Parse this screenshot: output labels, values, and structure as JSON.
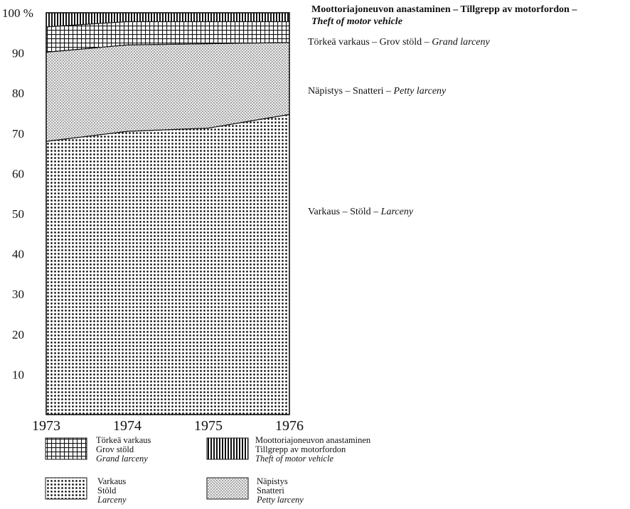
{
  "chart_data": {
    "type": "area",
    "stacked": true,
    "normalized": true,
    "x": [
      "1973",
      "1974",
      "1975",
      "1976"
    ],
    "ylim": [
      0,
      100
    ],
    "yticks": [
      "10",
      "20",
      "30",
      "40",
      "50",
      "60",
      "70",
      "80",
      "90",
      "100 %"
    ],
    "ytick_values": [
      10,
      20,
      30,
      40,
      50,
      60,
      70,
      80,
      90,
      100
    ],
    "series": [
      {
        "key": "larceny",
        "label_fi": "Varkaus",
        "label_sv": "Stöld",
        "label_en": "Larceny",
        "pattern": "dots",
        "values": [
          68,
          70.5,
          71.3,
          74.7
        ]
      },
      {
        "key": "petty",
        "label_fi": "Näpistys",
        "label_sv": "Snatteri",
        "label_en": "Petty larceny",
        "pattern": "fine-stipple",
        "values": [
          22.2,
          21.5,
          21.0,
          17.9
        ]
      },
      {
        "key": "grand",
        "label_fi": "Törkeä varkaus",
        "label_sv": "Grov stöld",
        "label_en": "Grand larceny",
        "pattern": "grid",
        "values": [
          6.3,
          5.8,
          5.5,
          5.2
        ]
      },
      {
        "key": "motor",
        "label_fi": "Moottoriajoneuvon anastaminen",
        "label_sv": "Tillgrepp av motorfordon",
        "label_en": "Theft of motor vehicle",
        "pattern": "vertical-lines",
        "values": [
          3.5,
          2.2,
          2.2,
          2.2
        ]
      }
    ],
    "side_labels": {
      "motor_line1": "Moottoriajoneuvon anastaminen – Tillgrepp av motorfordon –",
      "motor_line2": "Theft of motor vehicle",
      "grand_plain": "Törkeä varkaus – Grov stöld – ",
      "grand_italic": "Grand larceny",
      "petty_plain": "Näpistys – Snatteri – ",
      "petty_italic": "Petty larceny",
      "larceny_plain": "Varkaus – Stöld – ",
      "larceny_italic": "Larceny"
    },
    "legend_position": "bottom",
    "grid": false
  }
}
